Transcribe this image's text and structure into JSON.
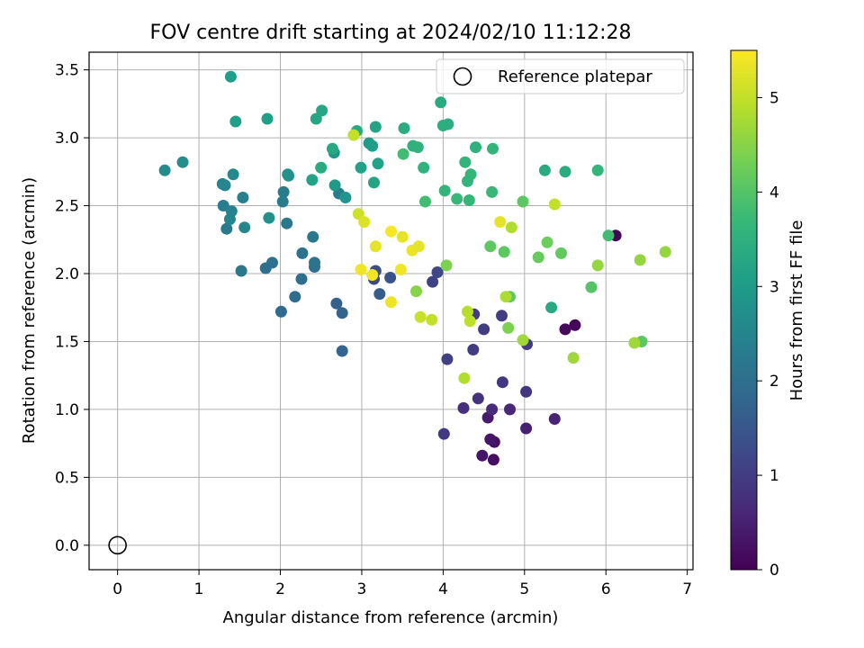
{
  "chart_data": {
    "type": "scatter",
    "title": "FOV centre drift starting at 2024/02/10 11:12:28",
    "xlabel": "Angular distance from reference (arcmin)",
    "ylabel": "Rotation from reference (arcmin)",
    "xlim": [
      -0.35,
      7.07
    ],
    "ylim": [
      -0.18,
      3.63
    ],
    "xticks": [
      0,
      1,
      2,
      3,
      4,
      5,
      6,
      7
    ],
    "xtick_labels": [
      "0",
      "1",
      "2",
      "3",
      "4",
      "5",
      "6",
      "7"
    ],
    "yticks": [
      0.0,
      0.5,
      1.0,
      1.5,
      2.0,
      2.5,
      3.0,
      3.5
    ],
    "ytick_labels": [
      "0.0",
      "0.5",
      "1.0",
      "1.5",
      "2.0",
      "2.5",
      "3.0",
      "3.5"
    ],
    "grid": true,
    "legend": {
      "position": "top-right",
      "entries": [
        "Reference platepar"
      ]
    },
    "reference_point": {
      "x": 0,
      "y": 0
    },
    "colorbar": {
      "label": "Hours from first FF file",
      "range": [
        0,
        5.5
      ],
      "ticks": [
        0,
        1,
        2,
        3,
        4,
        5
      ],
      "tick_labels": [
        "0",
        "1",
        "2",
        "3",
        "4",
        "5"
      ],
      "colormap": "viridis"
    },
    "colormap_stops": [
      "#440154",
      "#482878",
      "#3e4989",
      "#31688e",
      "#26828e",
      "#1f9e89",
      "#35b779",
      "#6ece58",
      "#b5de2b",
      "#fde725"
    ],
    "series": [
      {
        "points": [
          [
            6.12,
            2.28,
            0.05
          ],
          [
            5.62,
            1.62,
            0.1
          ],
          [
            5.5,
            1.59,
            0.15
          ],
          [
            4.62,
            0.63,
            0.2
          ],
          [
            4.63,
            0.76,
            0.25
          ],
          [
            4.48,
            0.66,
            0.3
          ],
          [
            4.58,
            0.78,
            0.35
          ],
          [
            4.55,
            0.94,
            0.4
          ],
          [
            5.02,
            0.86,
            0.5
          ],
          [
            5.37,
            0.93,
            0.55
          ],
          [
            4.82,
            1.0,
            0.6
          ],
          [
            4.6,
            1.0,
            0.65
          ],
          [
            4.25,
            1.01,
            0.75
          ],
          [
            4.43,
            1.08,
            0.8
          ],
          [
            5.02,
            1.13,
            0.85
          ],
          [
            4.73,
            1.2,
            0.9
          ],
          [
            4.01,
            0.82,
            0.95
          ],
          [
            4.05,
            1.37,
            1.05
          ],
          [
            4.5,
            1.59,
            1.0
          ],
          [
            4.38,
            1.7,
            1.0
          ],
          [
            4.37,
            1.44,
            1.0
          ],
          [
            4.72,
            1.69,
            1.0
          ],
          [
            5.03,
            1.48,
            1.0
          ],
          [
            3.87,
            1.94,
            1.1
          ],
          [
            3.93,
            2.01,
            1.2
          ],
          [
            3.15,
            1.96,
            1.2
          ],
          [
            3.17,
            2.02,
            1.3
          ],
          [
            3.35,
            1.97,
            1.4
          ],
          [
            3.22,
            1.85,
            1.6
          ],
          [
            2.69,
            1.78,
            1.7
          ],
          [
            2.76,
            1.71,
            1.75
          ],
          [
            2.76,
            1.43,
            1.8
          ],
          [
            2.01,
            1.72,
            1.9
          ],
          [
            2.18,
            1.83,
            1.95
          ],
          [
            2.26,
            1.96,
            2.0
          ],
          [
            1.82,
            2.04,
            2.0
          ],
          [
            1.9,
            2.08,
            2.05
          ],
          [
            2.42,
            2.05,
            2.05
          ],
          [
            2.42,
            2.08,
            2.1
          ],
          [
            2.27,
            2.15,
            2.1
          ],
          [
            2.4,
            2.27,
            2.2
          ],
          [
            2.08,
            2.37,
            2.2
          ],
          [
            1.34,
            2.33,
            2.25
          ],
          [
            1.52,
            2.02,
            2.2
          ],
          [
            2.03,
            2.53,
            2.3
          ],
          [
            2.04,
            2.6,
            2.3
          ],
          [
            2.72,
            2.59,
            2.3
          ],
          [
            1.3,
            2.5,
            2.35
          ],
          [
            1.54,
            2.56,
            2.4
          ],
          [
            1.4,
            2.46,
            2.45
          ],
          [
            1.38,
            2.4,
            2.5
          ],
          [
            1.29,
            2.66,
            2.5
          ],
          [
            1.32,
            2.65,
            2.55
          ],
          [
            1.56,
            2.34,
            2.55
          ],
          [
            1.42,
            2.73,
            2.6
          ],
          [
            0.58,
            2.76,
            2.65
          ],
          [
            0.8,
            2.82,
            2.7
          ],
          [
            1.86,
            2.41,
            2.75
          ],
          [
            2.1,
            2.72,
            2.8
          ],
          [
            2.09,
            2.73,
            2.8
          ],
          [
            2.8,
            2.56,
            2.85
          ],
          [
            2.66,
            2.89,
            2.9
          ],
          [
            2.67,
            2.65,
            2.95
          ],
          [
            3.09,
            2.96,
            3.0
          ],
          [
            3.13,
            2.94,
            3.05
          ],
          [
            1.39,
            3.45,
            3.05
          ],
          [
            1.45,
            3.12,
            3.1
          ],
          [
            1.84,
            3.14,
            3.1
          ],
          [
            2.39,
            2.69,
            3.15
          ],
          [
            2.99,
            2.78,
            3.15
          ],
          [
            3.2,
            2.81,
            3.15
          ],
          [
            3.15,
            2.67,
            3.2
          ],
          [
            3.17,
            3.08,
            3.2
          ],
          [
            2.44,
            3.14,
            3.25
          ],
          [
            2.51,
            3.2,
            3.25
          ],
          [
            2.94,
            3.05,
            3.3
          ],
          [
            2.64,
            2.92,
            3.3
          ],
          [
            2.5,
            2.78,
            3.35
          ],
          [
            3.97,
            3.26,
            3.35
          ],
          [
            3.52,
            3.07,
            3.4
          ],
          [
            4.0,
            3.09,
            3.45
          ],
          [
            4.06,
            3.1,
            3.45
          ],
          [
            3.63,
            2.94,
            3.5
          ],
          [
            3.69,
            2.93,
            3.55
          ],
          [
            3.76,
            2.78,
            3.55
          ],
          [
            4.4,
            2.93,
            3.5
          ],
          [
            4.61,
            2.92,
            3.6
          ],
          [
            4.27,
            2.82,
            3.6
          ],
          [
            4.34,
            2.73,
            3.65
          ],
          [
            4.3,
            2.68,
            3.6
          ],
          [
            4.02,
            2.61,
            3.6
          ],
          [
            4.32,
            2.54,
            3.65
          ],
          [
            4.17,
            2.55,
            3.7
          ],
          [
            4.6,
            2.6,
            3.7
          ],
          [
            5.25,
            2.76,
            3.35
          ],
          [
            5.5,
            2.75,
            3.4
          ],
          [
            5.9,
            2.76,
            3.6
          ],
          [
            5.33,
            1.75,
            3.3
          ],
          [
            3.51,
            2.88,
            3.8
          ],
          [
            3.78,
            2.53,
            3.8
          ],
          [
            4.98,
            2.53,
            4.1
          ],
          [
            4.58,
            2.2,
            4.1
          ],
          [
            4.75,
            2.16,
            4.1
          ],
          [
            5.45,
            2.15,
            4.15
          ],
          [
            5.17,
            2.12,
            4.2
          ],
          [
            5.28,
            2.23,
            4.25
          ],
          [
            6.03,
            2.28,
            3.8
          ],
          [
            5.82,
            1.9,
            4.0
          ],
          [
            6.44,
            1.5,
            4.1
          ],
          [
            4.82,
            1.83,
            4.1
          ],
          [
            4.8,
            1.6,
            4.4
          ],
          [
            4.04,
            2.06,
            4.4
          ],
          [
            3.67,
            1.87,
            4.5
          ],
          [
            5.9,
            2.06,
            4.6
          ],
          [
            6.42,
            2.1,
            4.6
          ],
          [
            6.73,
            2.16,
            4.6
          ],
          [
            6.35,
            1.49,
            4.7
          ],
          [
            5.6,
            1.38,
            4.7
          ],
          [
            4.98,
            1.51,
            4.7
          ],
          [
            4.77,
            1.83,
            4.8
          ],
          [
            4.26,
            1.23,
            4.85
          ],
          [
            4.84,
            2.34,
            4.85
          ],
          [
            4.3,
            1.72,
            4.9
          ],
          [
            4.33,
            1.65,
            4.95
          ],
          [
            3.72,
            1.68,
            5.05
          ],
          [
            3.86,
            1.66,
            5.0
          ],
          [
            5.37,
            2.51,
            5.0
          ],
          [
            2.9,
            3.02,
            5.0
          ],
          [
            2.96,
            2.44,
            5.1
          ],
          [
            3.03,
            2.38,
            5.2
          ],
          [
            4.7,
            2.38,
            5.3
          ],
          [
            3.17,
            2.2,
            5.3
          ],
          [
            3.5,
            2.27,
            5.3
          ],
          [
            3.62,
            2.17,
            5.35
          ],
          [
            3.7,
            2.2,
            5.3
          ],
          [
            2.99,
            2.03,
            5.4
          ],
          [
            3.13,
            1.99,
            5.4
          ],
          [
            3.48,
            2.03,
            5.4
          ],
          [
            3.36,
            1.79,
            5.35
          ],
          [
            3.36,
            2.31,
            5.45
          ]
        ]
      }
    ]
  }
}
